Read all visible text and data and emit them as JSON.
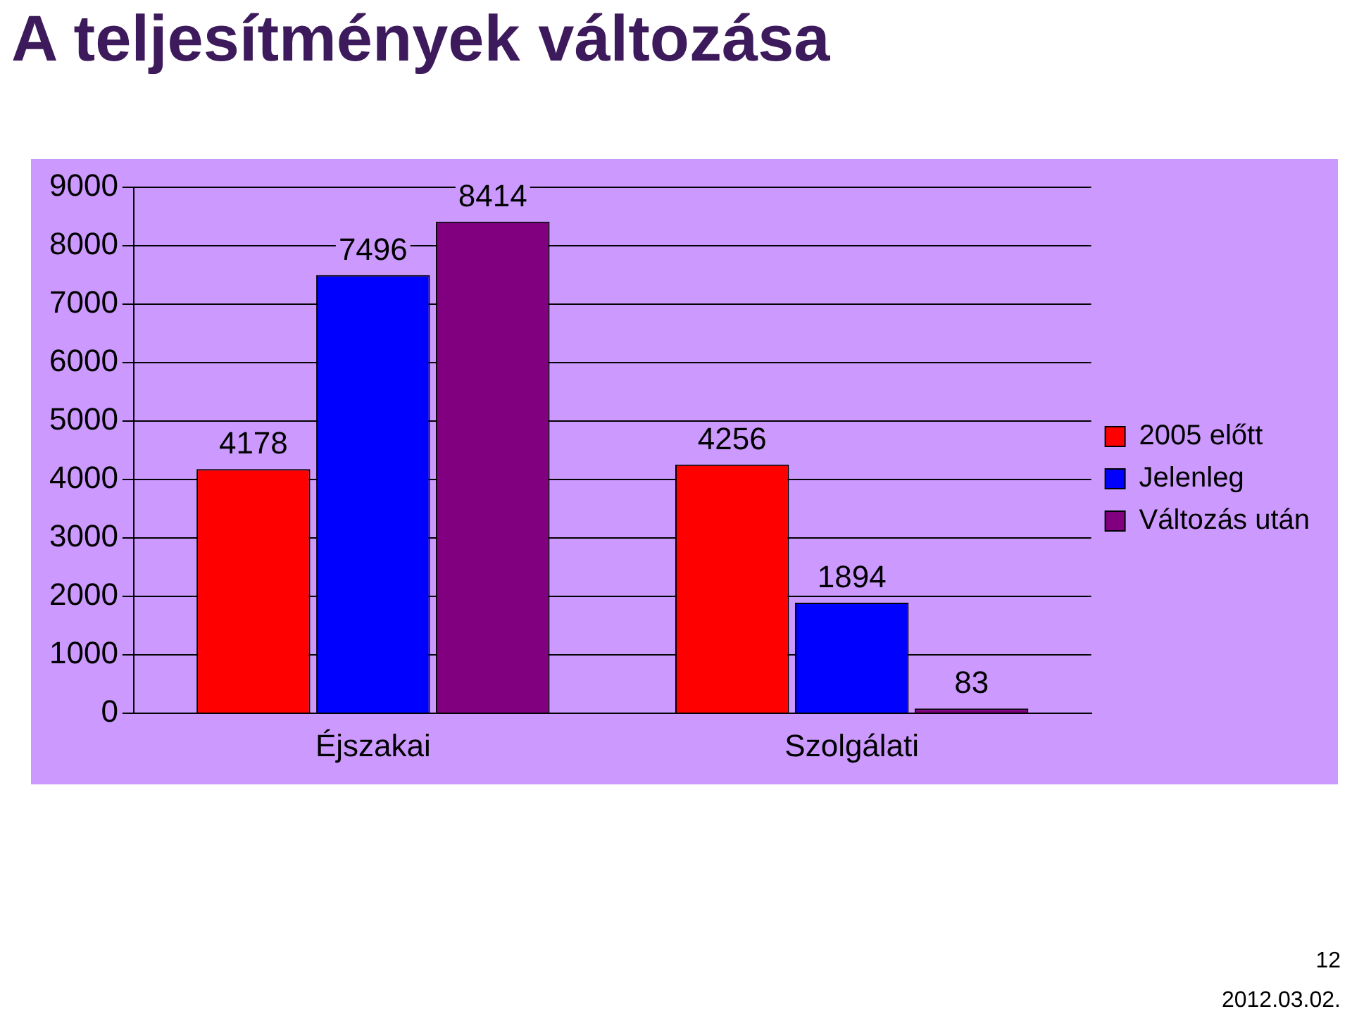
{
  "chart_data": {
    "type": "bar",
    "title": "A teljesítmények változása",
    "categories": [
      "Éjszakai",
      "Szolgálati"
    ],
    "series": [
      {
        "name": "2005 előtt",
        "color": "#ff0000",
        "values": [
          4178,
          4256
        ]
      },
      {
        "name": "Jelenleg",
        "color": "#0000ff",
        "values": [
          7496,
          1894
        ]
      },
      {
        "name": "Változás után",
        "color": "#800080",
        "values": [
          8414,
          83
        ]
      }
    ],
    "ylim": [
      0,
      9000
    ],
    "yticks": [
      0,
      1000,
      2000,
      3000,
      4000,
      5000,
      6000,
      7000,
      8000,
      9000
    ],
    "grid": "y",
    "legend": "right",
    "data_labels": true,
    "annotations": [
      "12",
      "2012.03.02."
    ]
  }
}
